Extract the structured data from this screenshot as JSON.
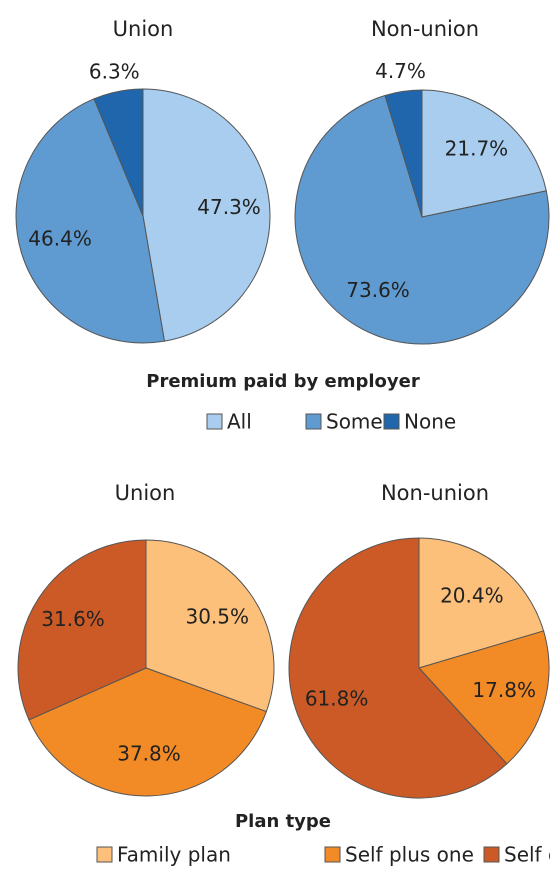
{
  "chart_data": [
    {
      "type": "pie",
      "title": "Premium paid by employer",
      "categories": [
        "All",
        "Some",
        "None"
      ],
      "colors": [
        "#a9cdef",
        "#5f9bd0",
        "#1f66ad"
      ],
      "series": [
        {
          "name": "Union",
          "values": [
            47.3,
            46.4,
            6.3
          ],
          "value_labels": [
            "47.3%",
            "46.4%",
            "6.3%"
          ]
        },
        {
          "name": "Non-union",
          "values": [
            21.7,
            73.6,
            4.7
          ],
          "value_labels": [
            "21.7%",
            "73.6%",
            "4.7%"
          ]
        }
      ]
    },
    {
      "type": "pie",
      "title": "Plan type",
      "categories": [
        "Family plan",
        "Self plus one",
        "Self only"
      ],
      "colors": [
        "#fcc07a",
        "#f28a26",
        "#cc5a27"
      ],
      "series": [
        {
          "name": "Union",
          "values": [
            30.5,
            37.8,
            31.6
          ],
          "value_labels": [
            "30.5%",
            "37.8%",
            "31.6%"
          ]
        },
        {
          "name": "Non-union",
          "values": [
            20.4,
            17.8,
            61.8
          ],
          "value_labels": [
            "20.4%",
            "17.8%",
            "61.8%"
          ]
        }
      ]
    }
  ]
}
